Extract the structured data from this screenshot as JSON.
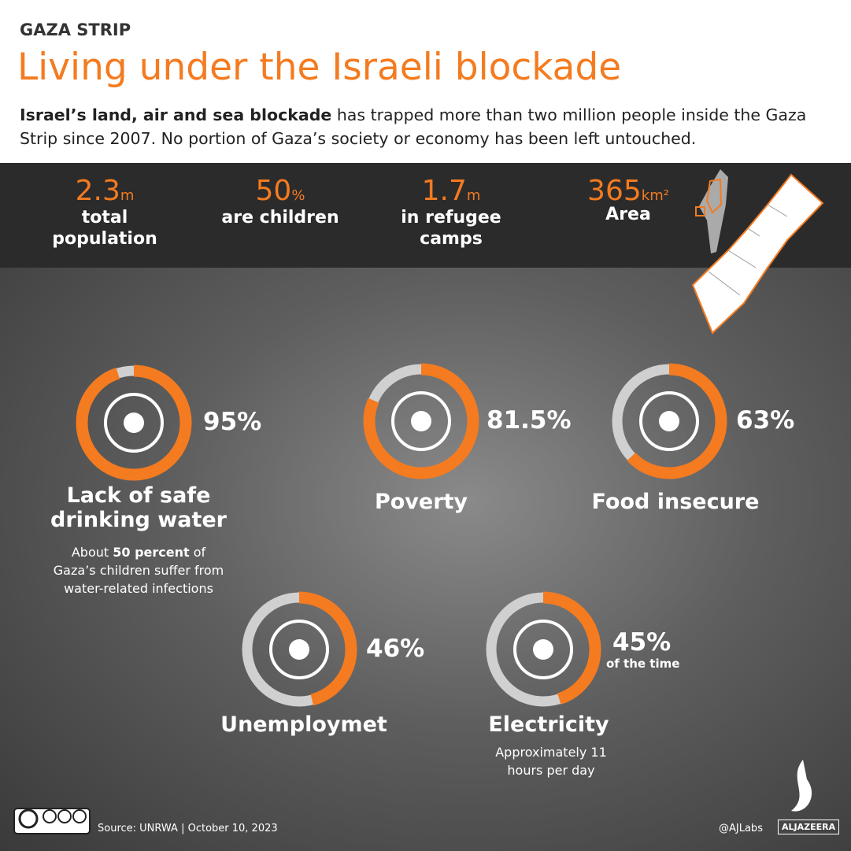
{
  "header": {
    "kicker": "GAZA STRIP",
    "title": "Living under the Israeli blockade",
    "intro_bold": "Israel’s land, air and sea blockade",
    "intro_rest": " has trapped more than two million people inside the Gaza Strip since 2007. No portion of Gaza’s society or economy has been left untouched."
  },
  "facts": [
    {
      "number": "2.3",
      "unit": "m",
      "label": "total population"
    },
    {
      "number": "50",
      "unit": "%",
      "label": "are children"
    },
    {
      "number": "1.7",
      "unit": "m",
      "label": "in refugee camps"
    },
    {
      "number": "365",
      "unit": "km²",
      "label": "Area"
    }
  ],
  "indicators": [
    {
      "value": 95,
      "label": "95%",
      "name": "Lack of safe drinking water",
      "note_parts": [
        "About ",
        "50 percent",
        " of Gaza’s children suffer from water-related infections"
      ]
    },
    {
      "value": 81.5,
      "label": "81.5%",
      "name": "Poverty"
    },
    {
      "value": 63,
      "label": "63%",
      "name": "Food insecure"
    },
    {
      "value": 46,
      "label": "46%",
      "name": "Unemploymet"
    },
    {
      "value": 45,
      "label": "45%",
      "sublabel": "of the time",
      "name": "Electricity",
      "note_parts": [
        "Approximately 11 hours per day"
      ]
    }
  ],
  "footer": {
    "cc_labels": [
      "BY",
      "NC",
      "SA"
    ],
    "source": "Source: UNRWA | October 10, 2023",
    "handle": "@AJLabs",
    "brand": "ALJAZEERA"
  }
}
